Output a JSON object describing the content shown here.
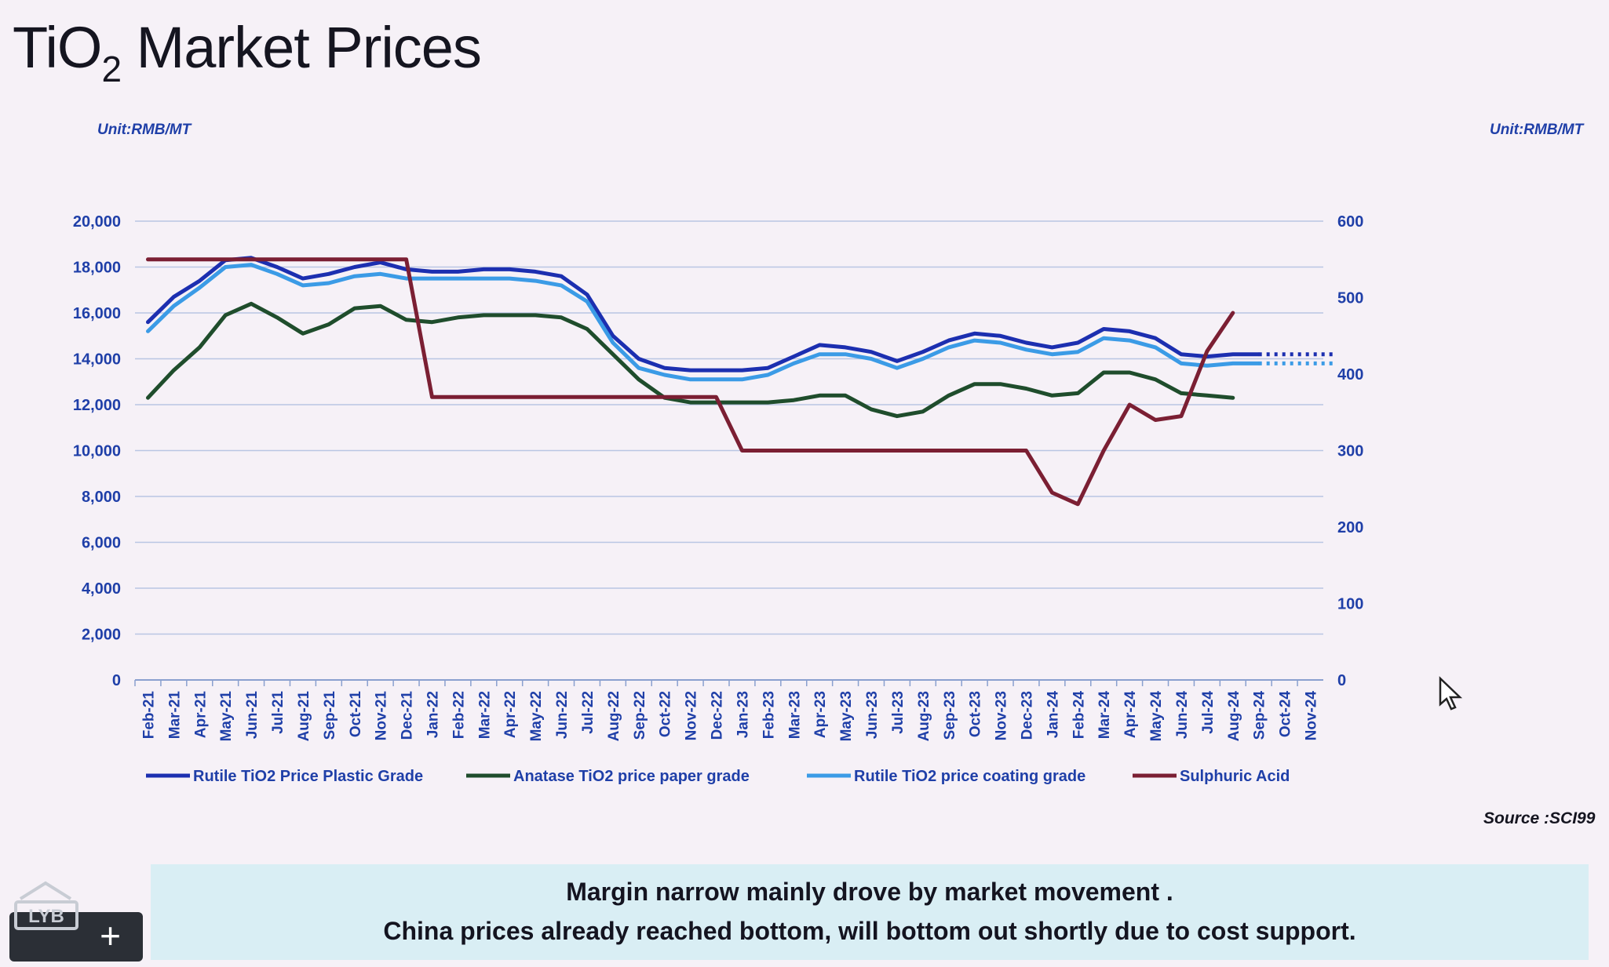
{
  "page": {
    "title_main": "TiO",
    "title_subscript": "2",
    "title_rest": " Market Prices",
    "unit_left": "Unit:RMB/MT",
    "unit_right": "Unit:RMB/MT",
    "source": "Source :SCI99",
    "banner_line1": "Margin narrow mainly drove by market movement .",
    "banner_line2": "China prices already reached bottom, will bottom out shortly due to cost support.",
    "logo_text": "LYB",
    "add_button_label": "+",
    "icons": {
      "logo": "lyb-logo-icon",
      "add": "plus-icon",
      "cursor": "mouse-pointer-icon"
    }
  },
  "chart_data": {
    "type": "line",
    "categories": [
      "Feb-21",
      "Mar-21",
      "Apr-21",
      "May-21",
      "Jun-21",
      "Jul-21",
      "Aug-21",
      "Sep-21",
      "Oct-21",
      "Nov-21",
      "Dec-21",
      "Jan-22",
      "Feb-22",
      "Mar-22",
      "Apr-22",
      "May-22",
      "Jun-22",
      "Jul-22",
      "Aug-22",
      "Sep-22",
      "Oct-22",
      "Nov-22",
      "Dec-22",
      "Jan-23",
      "Feb-23",
      "Mar-23",
      "Apr-23",
      "May-23",
      "Jun-23",
      "Jul-23",
      "Aug-23",
      "Sep-23",
      "Oct-23",
      "Nov-23",
      "Dec-23",
      "Jan-24",
      "Feb-24",
      "Mar-24",
      "Apr-24",
      "May-24",
      "Jun-24",
      "Jul-24",
      "Aug-24",
      "Sep-24",
      "Oct-24",
      "Nov-24"
    ],
    "y_left": {
      "ticks": [
        "0",
        "2,000",
        "4,000",
        "6,000",
        "8,000",
        "10,000",
        "12,000",
        "14,000",
        "16,000",
        "18,000",
        "20,000"
      ],
      "range": [
        0,
        20000
      ]
    },
    "y_right": {
      "ticks": [
        "0",
        "100",
        "200",
        "300",
        "400",
        "500",
        "600"
      ],
      "range": [
        0,
        600
      ]
    },
    "grid": true,
    "legend_position": "bottom",
    "series": [
      {
        "name": "Rutile TiO2 Price Plastic Grade",
        "axis": "left",
        "color": "#1c2fb0",
        "projection_dotted": [
          14200,
          14200,
          14200
        ],
        "values": [
          15600,
          16700,
          17400,
          18300,
          18400,
          18000,
          17500,
          17700,
          18000,
          18200,
          17900,
          17800,
          17800,
          17900,
          17900,
          17800,
          17600,
          16800,
          15000,
          14000,
          13600,
          13500,
          13500,
          13500,
          13600,
          14100,
          14600,
          14500,
          14300,
          13900,
          14300,
          14800,
          15100,
          15000,
          14700,
          14500,
          14700,
          15300,
          15200,
          14900,
          14200,
          14100,
          14200,
          14200,
          null,
          null
        ]
      },
      {
        "name": "Anatase  TiO2 price paper grade",
        "axis": "left",
        "color": "#1f4d2c",
        "values": [
          12300,
          13500,
          14500,
          15900,
          16400,
          15800,
          15100,
          15500,
          16200,
          16300,
          15700,
          15600,
          15800,
          15900,
          15900,
          15900,
          15800,
          15300,
          14200,
          13100,
          12300,
          12100,
          12100,
          12100,
          12100,
          12200,
          12400,
          12400,
          11800,
          11500,
          11700,
          12400,
          12900,
          12900,
          12700,
          12400,
          12500,
          13400,
          13400,
          13100,
          12500,
          12400,
          12300,
          null,
          null,
          null
        ]
      },
      {
        "name": "Rutile TiO2 price coating grade",
        "axis": "left",
        "color": "#3b9be6",
        "projection_dotted": [
          13800,
          13800,
          13800
        ],
        "values": [
          15200,
          16300,
          17100,
          18000,
          18100,
          17700,
          17200,
          17300,
          17600,
          17700,
          17500,
          17500,
          17500,
          17500,
          17500,
          17400,
          17200,
          16500,
          14700,
          13600,
          13300,
          13100,
          13100,
          13100,
          13300,
          13800,
          14200,
          14200,
          14000,
          13600,
          14000,
          14500,
          14800,
          14700,
          14400,
          14200,
          14300,
          14900,
          14800,
          14500,
          13800,
          13700,
          13800,
          13800,
          null,
          null
        ]
      },
      {
        "name": "Sulphuric Acid",
        "axis": "right",
        "color": "#7b1f33",
        "values": [
          550,
          550,
          550,
          550,
          550,
          550,
          550,
          550,
          550,
          550,
          550,
          370,
          370,
          370,
          370,
          370,
          370,
          370,
          370,
          370,
          370,
          370,
          370,
          300,
          300,
          300,
          300,
          300,
          300,
          300,
          300,
          300,
          300,
          300,
          300,
          245,
          230,
          300,
          360,
          340,
          345,
          430,
          480,
          null,
          null,
          null
        ]
      }
    ]
  }
}
